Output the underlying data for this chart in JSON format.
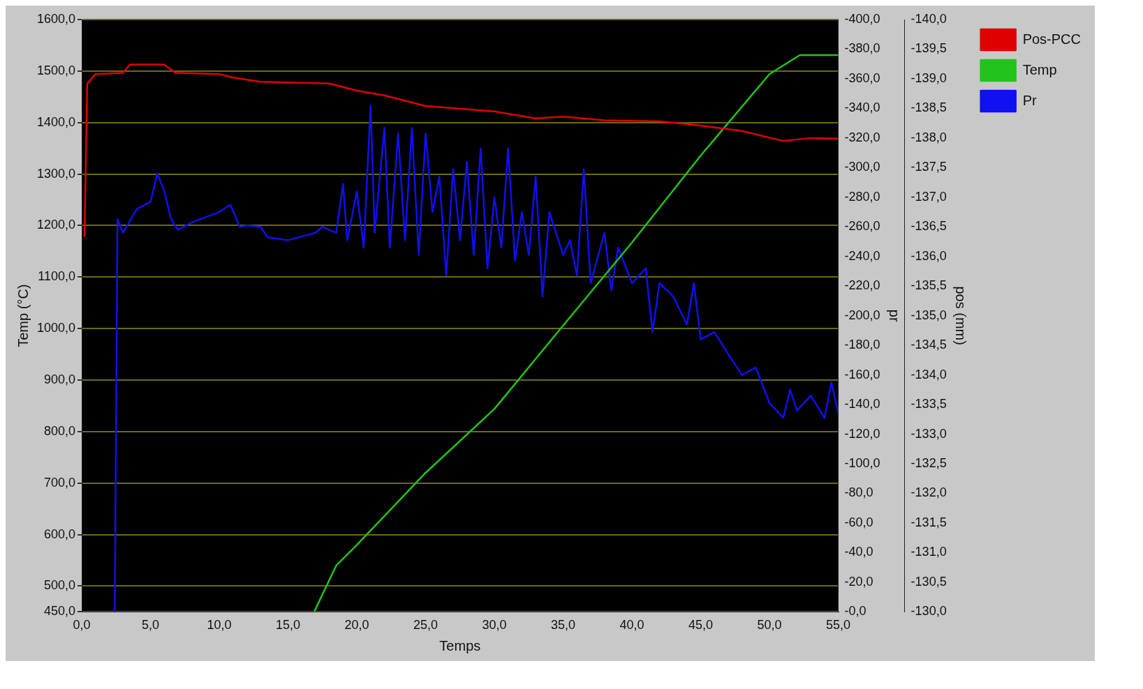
{
  "chart_data": {
    "type": "line",
    "xlabel": "Temps",
    "ylabel": "Temp (°C)",
    "y2label": "pr",
    "y3label": "pos (mm)",
    "legend": "top right",
    "grid": "y",
    "marker": "none",
    "line_style": "solid",
    "xlim": [
      0,
      55
    ],
    "xticks": [
      {
        "value": 0,
        "label": "0,0"
      },
      {
        "value": 5,
        "label": "5,0"
      },
      {
        "value": 10,
        "label": "10,0"
      },
      {
        "value": 15,
        "label": "15,0"
      },
      {
        "value": 20,
        "label": "20,0"
      },
      {
        "value": 25,
        "label": "25,0"
      },
      {
        "value": 30,
        "label": "30,0"
      },
      {
        "value": 35,
        "label": "35,0"
      },
      {
        "value": 40,
        "label": "40,0"
      },
      {
        "value": 45,
        "label": "45,0"
      },
      {
        "value": 50,
        "label": "50,0"
      },
      {
        "value": 55,
        "label": "55,0"
      }
    ],
    "ylim": [
      450,
      1600
    ],
    "yticks": [
      {
        "value": 450,
        "label": "450,0"
      },
      {
        "value": 500,
        "label": "500,0"
      },
      {
        "value": 600,
        "label": "600,0"
      },
      {
        "value": 700,
        "label": "700,0"
      },
      {
        "value": 800,
        "label": "800,0"
      },
      {
        "value": 900,
        "label": "900,0"
      },
      {
        "value": 1000,
        "label": "1000,0"
      },
      {
        "value": 1100,
        "label": "1100,0"
      },
      {
        "value": 1200,
        "label": "1200,0"
      },
      {
        "value": 1300,
        "label": "1300,0"
      },
      {
        "value": 1400,
        "label": "1400,0"
      },
      {
        "value": 1500,
        "label": "1500,0"
      },
      {
        "value": 1600,
        "label": "1600,0"
      }
    ],
    "y2lim": [
      0,
      -400
    ],
    "y2ticks": [
      {
        "value": 0,
        "label": "-0,0"
      },
      {
        "value": -20,
        "label": "-20,0"
      },
      {
        "value": -40,
        "label": "-40,0"
      },
      {
        "value": -60,
        "label": "-60,0"
      },
      {
        "value": -80,
        "label": "-80,0"
      },
      {
        "value": -100,
        "label": "-100,0"
      },
      {
        "value": -120,
        "label": "-120,0"
      },
      {
        "value": -140,
        "label": "-140,0"
      },
      {
        "value": -160,
        "label": "-160,0"
      },
      {
        "value": -180,
        "label": "-180,0"
      },
      {
        "value": -200,
        "label": "-200,0"
      },
      {
        "value": -220,
        "label": "-220,0"
      },
      {
        "value": -240,
        "label": "-240,0"
      },
      {
        "value": -260,
        "label": "-260,0"
      },
      {
        "value": -280,
        "label": "-280,0"
      },
      {
        "value": -300,
        "label": "-300,0"
      },
      {
        "value": -320,
        "label": "-320,0"
      },
      {
        "value": -340,
        "label": "-340,0"
      },
      {
        "value": -360,
        "label": "-360,0"
      },
      {
        "value": -380,
        "label": "-380,0"
      },
      {
        "value": -400,
        "label": "-400,0"
      }
    ],
    "y3lim": [
      -130,
      -140
    ],
    "y3ticks": [
      {
        "value": -130,
        "label": "-130,0"
      },
      {
        "value": -130.5,
        "label": "-130,5"
      },
      {
        "value": -131,
        "label": "-131,0"
      },
      {
        "value": -131.5,
        "label": "-131,5"
      },
      {
        "value": -132,
        "label": "-132,0"
      },
      {
        "value": -132.5,
        "label": "-132,5"
      },
      {
        "value": -133,
        "label": "-133,0"
      },
      {
        "value": -133.5,
        "label": "-133,5"
      },
      {
        "value": -134,
        "label": "-134,0"
      },
      {
        "value": -134.5,
        "label": "-134,5"
      },
      {
        "value": -135,
        "label": "-135,0"
      },
      {
        "value": -135.5,
        "label": "-135,5"
      },
      {
        "value": -136,
        "label": "-136,0"
      },
      {
        "value": -136.5,
        "label": "-136,5"
      },
      {
        "value": -137,
        "label": "-137,0"
      },
      {
        "value": -137.5,
        "label": "-137,5"
      },
      {
        "value": -138,
        "label": "-138,0"
      },
      {
        "value": -138.5,
        "label": "-138,5"
      },
      {
        "value": -139,
        "label": "-139,0"
      },
      {
        "value": -139.5,
        "label": "-139,5"
      },
      {
        "value": -140,
        "label": "-140,0"
      }
    ],
    "series": [
      {
        "name": "Pos-PCC",
        "color": "#e00000",
        "axis": "y3",
        "x": [
          0.2,
          0.4,
          1,
          3,
          3.5,
          6,
          6.8,
          10,
          11,
          13,
          18,
          20,
          22,
          25,
          30,
          33,
          35,
          38,
          42,
          45,
          48,
          51,
          53,
          55
        ],
        "values": [
          -136.33,
          -138.92,
          -139.08,
          -139.1,
          -139.24,
          -139.24,
          -139.1,
          -139.08,
          -139.02,
          -138.95,
          -138.92,
          -138.8,
          -138.72,
          -138.54,
          -138.45,
          -138.33,
          -138.36,
          -138.3,
          -138.28,
          -138.21,
          -138.12,
          -137.95,
          -138,
          -137.99
        ]
      },
      {
        "name": "Temp",
        "color": "#22c41a",
        "x": [
          16.9,
          18.5,
          20,
          25,
          30,
          35,
          40,
          45,
          50,
          52.2,
          55
        ],
        "values": [
          450,
          540,
          580,
          720,
          844,
          1006,
          1167,
          1336,
          1494,
          1531,
          1531
        ]
      },
      {
        "name": "Pr",
        "color": "#1010f0",
        "axis": "y2",
        "x": [
          2.4,
          2.6,
          3,
          4,
          5,
          5.5,
          6,
          6.5,
          7,
          8,
          10,
          10.8,
          11.5,
          12,
          13,
          13.5,
          15,
          17,
          17.5,
          18.5,
          19,
          19.3,
          20,
          20.5,
          21,
          21.3,
          22,
          22.4,
          23,
          23.5,
          24,
          24.5,
          25,
          25.5,
          26,
          26.5,
          27,
          27.5,
          28,
          28.5,
          29,
          29.5,
          30,
          30.5,
          31,
          31.5,
          32,
          32.5,
          33,
          33.5,
          34,
          35,
          35.5,
          36,
          36.5,
          37,
          38,
          38.5,
          39,
          40,
          41,
          41.5,
          42,
          43,
          44,
          44.5,
          45,
          46,
          47,
          48,
          49,
          50,
          51,
          51.5,
          52,
          53,
          54,
          54.5,
          55
        ],
        "values": [
          0,
          -265,
          -256,
          -272,
          -277,
          -296,
          -284,
          -265,
          -258,
          -263,
          -270,
          -275,
          -260,
          -261,
          -260,
          -253,
          -251,
          -256,
          -260,
          -256,
          -289,
          -251,
          -284,
          -246,
          -342,
          -256,
          -327,
          -246,
          -323,
          -251,
          -327,
          -241,
          -323,
          -270,
          -294,
          -227,
          -299,
          -251,
          -304,
          -241,
          -313,
          -232,
          -280,
          -246,
          -313,
          -237,
          -270,
          -241,
          -294,
          -213,
          -270,
          -241,
          -251,
          -227,
          -299,
          -222,
          -256,
          -217,
          -246,
          -222,
          -232,
          -189,
          -222,
          -213,
          -194,
          -222,
          -184,
          -189,
          -174,
          -160,
          -165,
          -141,
          -131,
          -150,
          -136,
          -146,
          -131,
          -155,
          -134
        ]
      }
    ]
  }
}
